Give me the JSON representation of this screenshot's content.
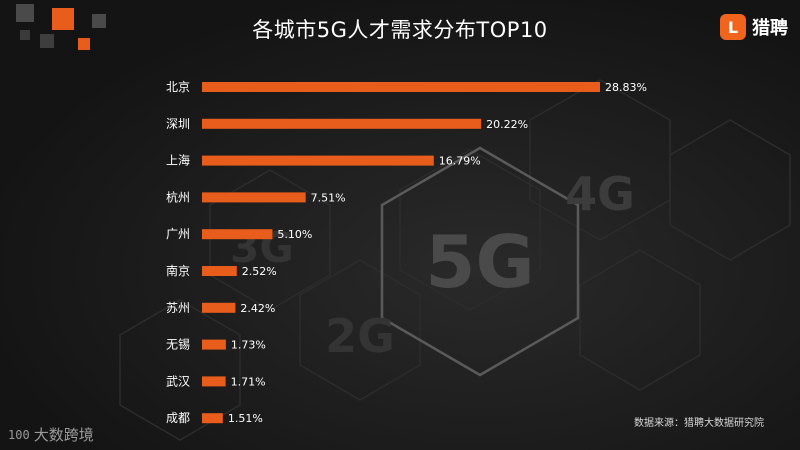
{
  "header": {
    "title": "各城市5G人才需求分布TOP10"
  },
  "logo": {
    "mark": "L",
    "text": "猎聘"
  },
  "background": {
    "labels": [
      "4G",
      "3G",
      "5G",
      "2G"
    ]
  },
  "footer": {
    "source": "数据来源：猎聘大数据研究院"
  },
  "watermark": {
    "mark": "100",
    "text": "大数跨境"
  },
  "colors": {
    "bar": "#e85d1c",
    "text": "#ffffff",
    "background": "#1a1a1a"
  },
  "chart_data": {
    "type": "bar",
    "orientation": "horizontal",
    "title": "各城市5G人才需求分布TOP10",
    "categories": [
      "北京",
      "深圳",
      "上海",
      "杭州",
      "广州",
      "南京",
      "苏州",
      "无锡",
      "武汉",
      "成都"
    ],
    "values": [
      28.83,
      20.22,
      16.79,
      7.51,
      5.1,
      2.52,
      2.42,
      1.73,
      1.71,
      1.51
    ],
    "data_labels": [
      "28.83%",
      "20.22%",
      "16.79%",
      "7.51%",
      "5.10%",
      "2.52%",
      "2.42%",
      "1.73%",
      "1.71%",
      "1.51%"
    ],
    "xlim": [
      0,
      28.83
    ],
    "grid": false,
    "legend": "none"
  }
}
